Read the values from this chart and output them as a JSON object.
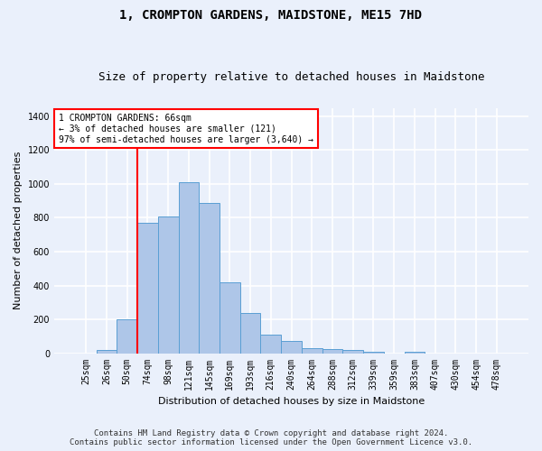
{
  "title": "1, CROMPTON GARDENS, MAIDSTONE, ME15 7HD",
  "subtitle": "Size of property relative to detached houses in Maidstone",
  "xlabel": "Distribution of detached houses by size in Maidstone",
  "ylabel": "Number of detached properties",
  "footer_line1": "Contains HM Land Registry data © Crown copyright and database right 2024.",
  "footer_line2": "Contains public sector information licensed under the Open Government Licence v3.0.",
  "bar_labels": [
    "25sqm",
    "26sqm",
    "50sqm",
    "74sqm",
    "98sqm",
    "121sqm",
    "145sqm",
    "169sqm",
    "193sqm",
    "216sqm",
    "240sqm",
    "264sqm",
    "288sqm",
    "312sqm",
    "339sqm",
    "359sqm",
    "383sqm",
    "407sqm",
    "430sqm",
    "454sqm",
    "478sqm"
  ],
  "bar_values": [
    0,
    20,
    200,
    770,
    810,
    1010,
    890,
    420,
    235,
    110,
    70,
    27,
    22,
    20,
    10,
    0,
    10,
    0,
    0,
    0,
    0
  ],
  "bar_color": "#aec6e8",
  "bar_edge_color": "#5a9fd4",
  "vline_color": "red",
  "vline_position": 2.5,
  "annotation_text": "1 CROMPTON GARDENS: 66sqm\n← 3% of detached houses are smaller (121)\n97% of semi-detached houses are larger (3,640) →",
  "ylim": [
    0,
    1450
  ],
  "yticks": [
    0,
    200,
    400,
    600,
    800,
    1000,
    1200,
    1400
  ],
  "bg_color": "#eaf0fb",
  "plot_bg_color": "#eaf0fb",
  "grid_color": "white",
  "title_fontsize": 10,
  "subtitle_fontsize": 9,
  "axis_label_fontsize": 8,
  "tick_fontsize": 7,
  "footer_fontsize": 6.5
}
